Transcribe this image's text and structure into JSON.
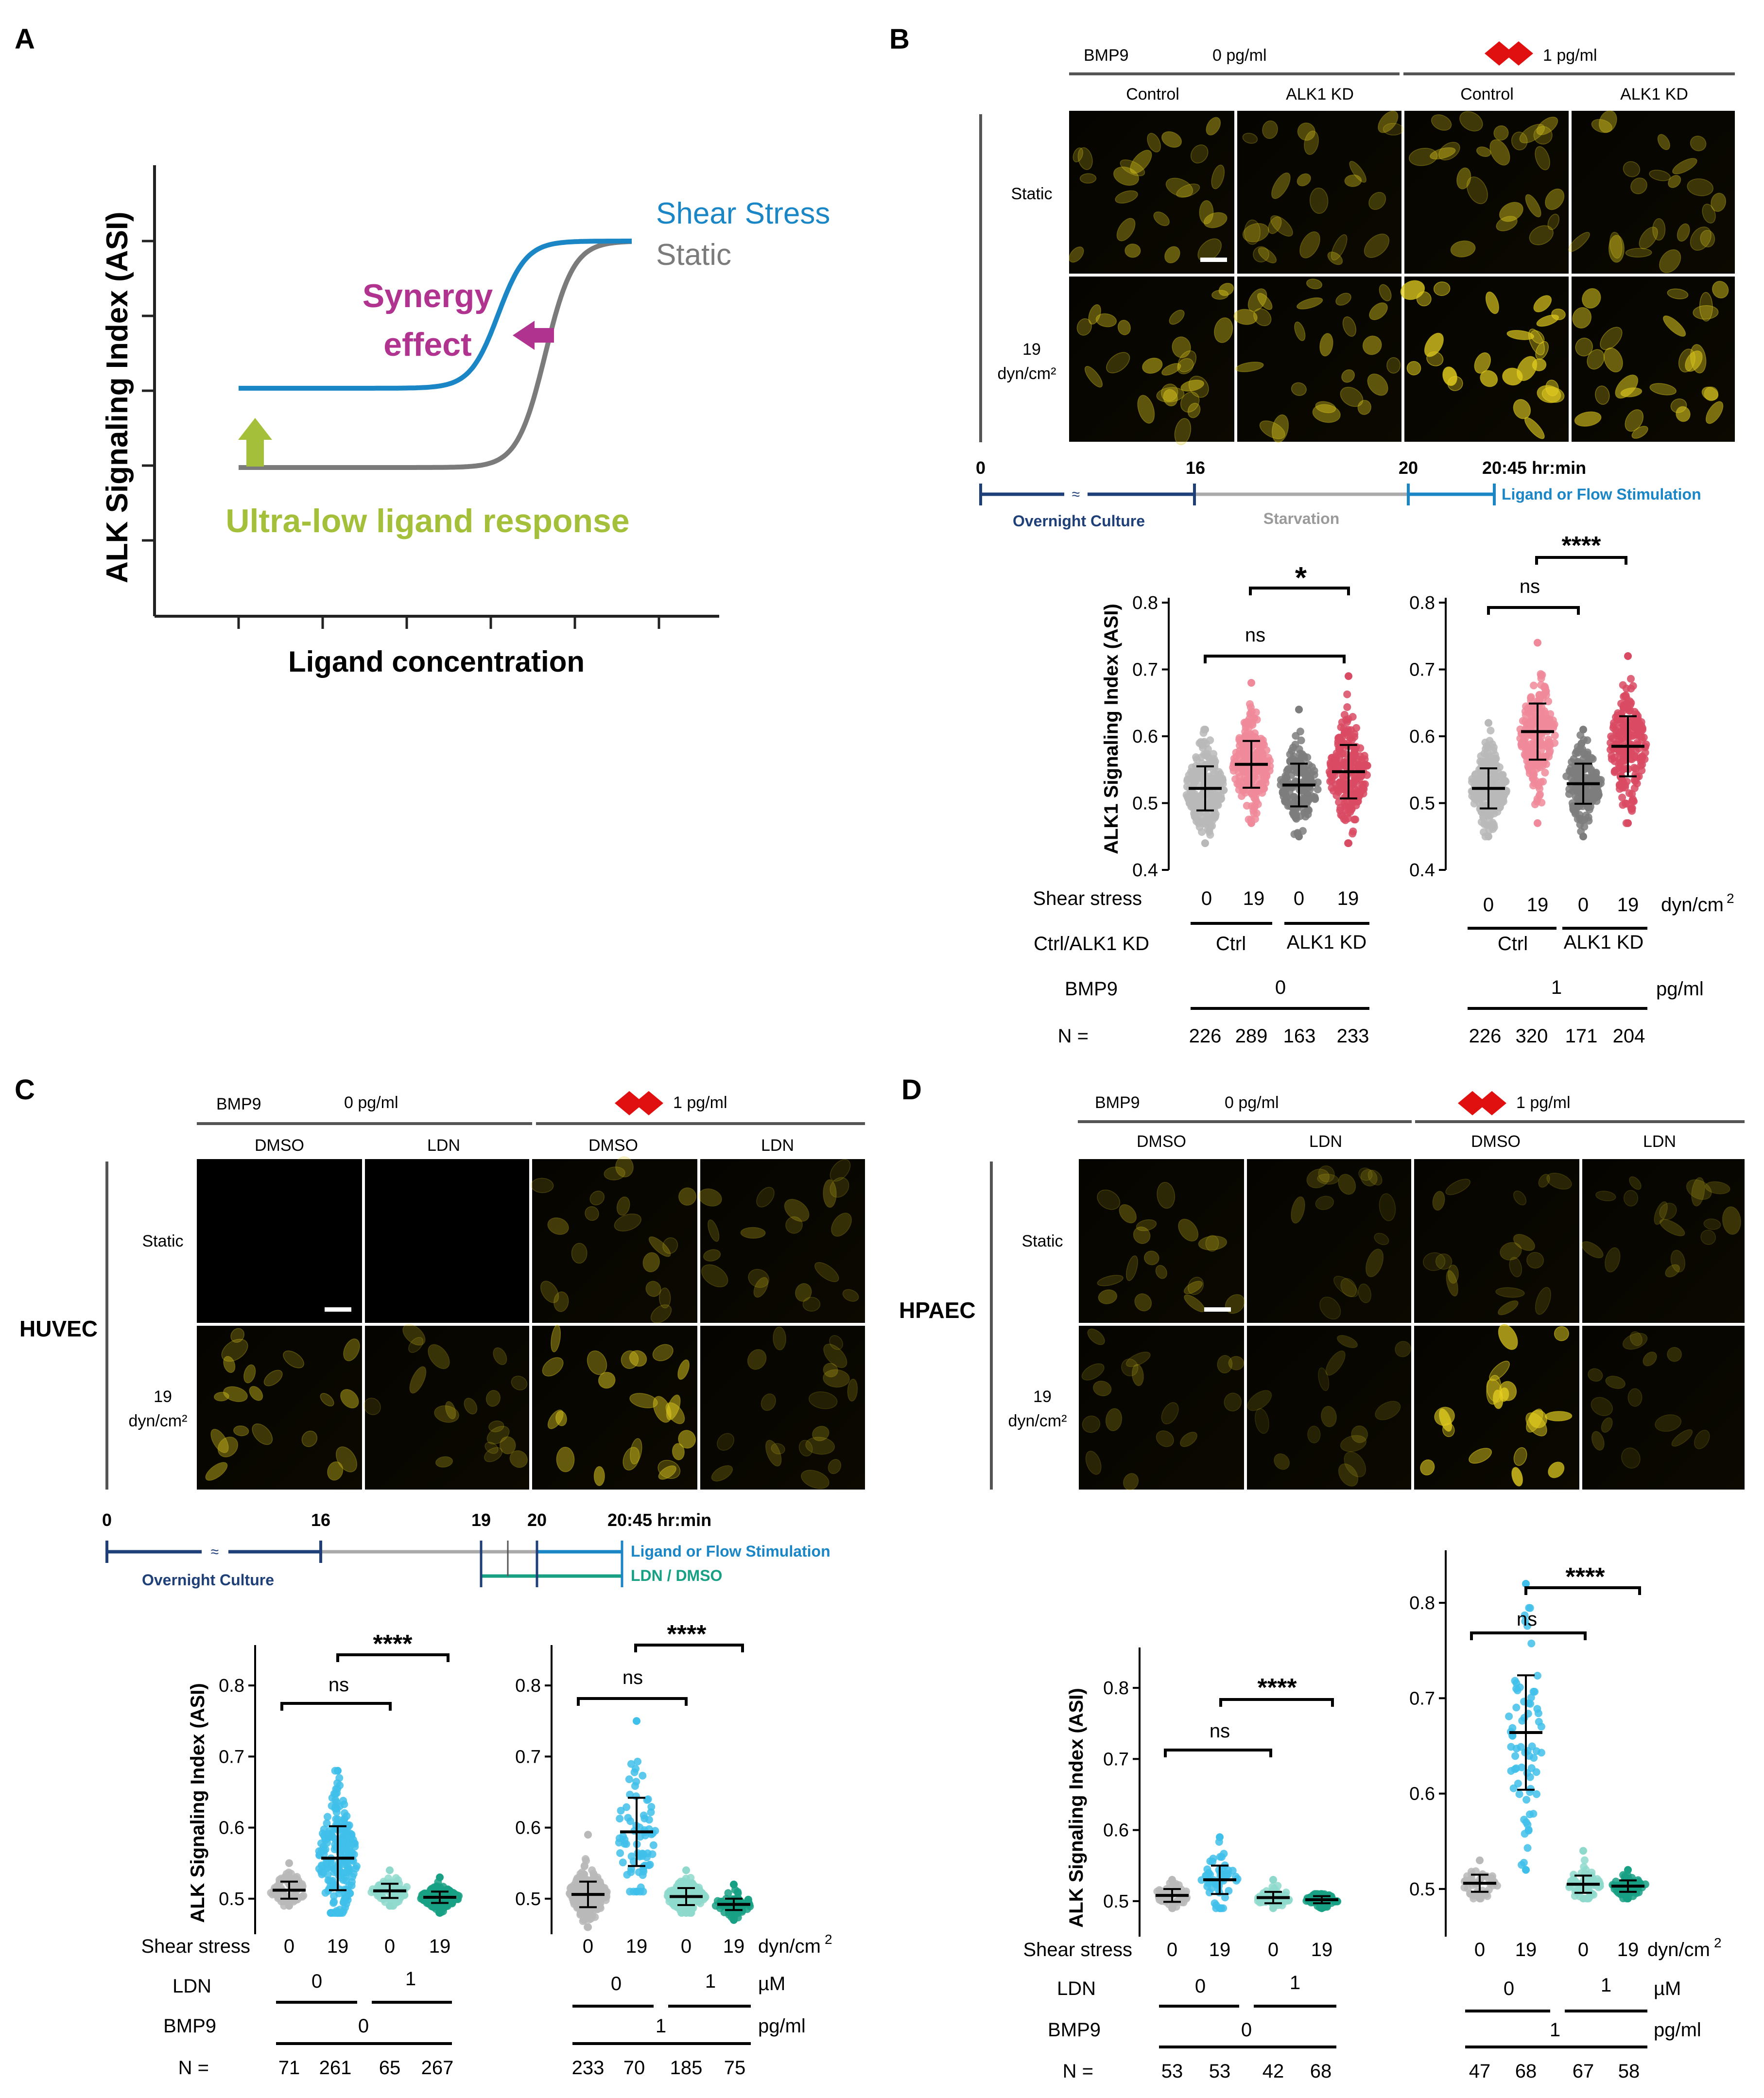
{
  "panels": {
    "A": {
      "letter": "A",
      "ylabel": "ALK Signaling Index (ASI)",
      "xlabel": "Ligand concentration",
      "legend_shear": "Shear Stress",
      "legend_static": "Static",
      "synergy_line1": "Synergy",
      "synergy_line2": "effect",
      "ultra_low": "Ultra-low ligand response",
      "colors": {
        "shear": "#1a86c6",
        "static": "#7b7b7b",
        "synergy": "#b0338f",
        "ultra": "#a4c03a"
      }
    },
    "B": {
      "letter": "B",
      "bmp9_label": "BMP9",
      "dose0": "0 pg/ml",
      "dose1": "1 pg/ml",
      "cols": [
        "Control",
        "ALK1 KD",
        "Control",
        "ALK1 KD"
      ],
      "rows": [
        "Static",
        "19",
        "dyn/cm²"
      ],
      "timeline": {
        "ticks": [
          "0",
          "16",
          "20",
          "20:45 hr:min"
        ],
        "overnight": "Overnight Culture",
        "starvation": "Starvation",
        "stim": "Ligand or Flow Stimulation",
        "break": "≈"
      },
      "ylabel": "ALK1 Signaling Index (ASI)",
      "plot1": {
        "sig1": "ns",
        "sig2": "*"
      },
      "plot2": {
        "sig1": "ns",
        "sig2": "****"
      },
      "table": {
        "shear_label": "Shear stress",
        "ctrl_label": "Ctrl/ALK1 KD",
        "bmp9_label": "BMP9",
        "n_label": "N =",
        "shear_vals": [
          "0",
          "19",
          "0",
          "19"
        ],
        "shear_unit": "dyn/cm",
        "sup2": "2",
        "ctrl": "Ctrl",
        "kd": "ALK1 KD",
        "bmp9_left": "0",
        "bmp9_right": "1",
        "bmp9_unit": "pg/ml",
        "n_left": [
          "226",
          "289",
          "163",
          "233"
        ],
        "n_right": [
          "226",
          "320",
          "171",
          "204"
        ]
      }
    },
    "C": {
      "letter": "C",
      "cell": "HUVEC",
      "bmp9_label": "BMP9",
      "dose0": "0 pg/ml",
      "dose1": "1 pg/ml",
      "cols": [
        "DMSO",
        "LDN",
        "DMSO",
        "LDN"
      ],
      "rows": [
        "Static",
        "19",
        "dyn/cm²"
      ],
      "timeline": {
        "ticks": [
          "0",
          "16",
          "19",
          "20",
          "20:45 hr:min"
        ],
        "overnight": "Overnight Culture",
        "stim": "Ligand or Flow Stimulation",
        "ldn": "LDN / DMSO",
        "break": "≈"
      },
      "ylabel": "ALK Signaling Index (ASI)",
      "plot1": {
        "sig1": "ns",
        "sig2": "****"
      },
      "plot2": {
        "sig1": "ns",
        "sig2": "****"
      },
      "table": {
        "shear_label": "Shear stress",
        "ldn_label": "LDN",
        "bmp9_label": "BMP9",
        "n_label": "N =",
        "shear_vals": [
          "0",
          "19",
          "0",
          "19"
        ],
        "shear_unit": "dyn/cm",
        "sup2": "2",
        "ldn0": "0",
        "ldn1": "1",
        "ldn_unit": "µM",
        "bmp9_left": "0",
        "bmp9_right": "1",
        "bmp9_unit": "pg/ml",
        "n_left": [
          "71",
          "261",
          "65",
          "267"
        ],
        "n_right": [
          "233",
          "70",
          "185",
          "75"
        ]
      }
    },
    "D": {
      "letter": "D",
      "cell": "HPAEC",
      "bmp9_label": "BMP9",
      "dose0": "0 pg/ml",
      "dose1": "1 pg/ml",
      "cols": [
        "DMSO",
        "LDN",
        "DMSO",
        "LDN"
      ],
      "rows": [
        "Static",
        "19",
        "dyn/cm²"
      ],
      "ylabel": "ALK Signaling Index (ASI)",
      "plot1": {
        "sig1": "ns",
        "sig2": "****"
      },
      "plot2": {
        "sig1": "ns",
        "sig2": "****"
      },
      "table": {
        "shear_label": "Shear stress",
        "ldn_label": "LDN",
        "bmp9_label": "BMP9",
        "n_label": "N =",
        "shear_vals": [
          "0",
          "19",
          "0",
          "19"
        ],
        "shear_unit": "dyn/cm",
        "sup2": "2",
        "ldn0": "0",
        "ldn1": "1",
        "ldn_unit": "µM",
        "bmp9_left": "0",
        "bmp9_right": "1",
        "bmp9_unit": "pg/ml",
        "n_left": [
          "53",
          "53",
          "42",
          "68"
        ],
        "n_right": [
          "47",
          "68",
          "67",
          "58"
        ]
      }
    }
  },
  "chart_data": [
    {
      "type": "line",
      "id": "A",
      "title": "",
      "xlabel": "Ligand concentration",
      "ylabel": "ALK Signaling Index (ASI)",
      "series": [
        {
          "name": "Shear Stress",
          "low": 0.35,
          "high": 1.0,
          "midpoint": 0.66,
          "color": "#1a86c6"
        },
        {
          "name": "Static",
          "low": 0.0,
          "high": 1.0,
          "midpoint": 0.78,
          "color": "#7b7b7b"
        }
      ]
    },
    {
      "type": "scatter",
      "id": "B1",
      "ylabel": "ALK1 Signaling Index (ASI)",
      "ylim": [
        0.4,
        0.8
      ],
      "yticks": [
        "0.4",
        "0.5",
        "0.6",
        "0.7",
        "0.8"
      ],
      "categories": [
        "0",
        "19",
        "0",
        "19"
      ],
      "means": [
        0.522,
        0.558,
        0.527,
        0.547
      ],
      "sd": [
        0.033,
        0.035,
        0.032,
        0.04
      ],
      "min": [
        0.44,
        0.47,
        0.45,
        0.44
      ],
      "max": [
        0.61,
        0.68,
        0.64,
        0.69
      ],
      "colors": [
        "#b9b9b9",
        "#f08a9a",
        "#7d7d7d",
        "#d94a63"
      ]
    },
    {
      "type": "scatter",
      "id": "B2",
      "ylabel": "ALK1 Signaling Index (ASI)",
      "ylim": [
        0.4,
        0.8
      ],
      "yticks": [
        "0.4",
        "0.5",
        "0.6",
        "0.7",
        "0.8"
      ],
      "categories": [
        "0",
        "19",
        "0",
        "19"
      ],
      "means": [
        0.522,
        0.607,
        0.529,
        0.585
      ],
      "sd": [
        0.03,
        0.042,
        0.03,
        0.045
      ],
      "min": [
        0.45,
        0.47,
        0.45,
        0.47
      ],
      "max": [
        0.62,
        0.74,
        0.61,
        0.72
      ],
      "colors": [
        "#b9b9b9",
        "#f08a9a",
        "#7d7d7d",
        "#d94a63"
      ]
    },
    {
      "type": "scatter",
      "id": "C1",
      "ylabel": "ALK Signaling Index (ASI)",
      "ylim": [
        0.45,
        0.85
      ],
      "yticks": [
        "0.5",
        "0.6",
        "0.7",
        "0.8"
      ],
      "categories": [
        "0",
        "19",
        "0",
        "19"
      ],
      "means": [
        0.512,
        0.557,
        0.511,
        0.502
      ],
      "sd": [
        0.012,
        0.045,
        0.01,
        0.008
      ],
      "min": [
        0.49,
        0.48,
        0.49,
        0.48
      ],
      "max": [
        0.55,
        0.68,
        0.54,
        0.53
      ],
      "colors": [
        "#b9b9b9",
        "#3fc0ea",
        "#8ed9cc",
        "#17a084"
      ]
    },
    {
      "type": "scatter",
      "id": "C2",
      "ylabel": "ALK Signaling Index (ASI)",
      "ylim": [
        0.45,
        0.85
      ],
      "yticks": [
        "0.5",
        "0.6",
        "0.7",
        "0.8"
      ],
      "categories": [
        "0",
        "19",
        "0",
        "19"
      ],
      "means": [
        0.506,
        0.594,
        0.503,
        0.492
      ],
      "sd": [
        0.018,
        0.048,
        0.012,
        0.008
      ],
      "min": [
        0.46,
        0.51,
        0.48,
        0.47
      ],
      "max": [
        0.59,
        0.75,
        0.54,
        0.52
      ],
      "colors": [
        "#b9b9b9",
        "#3fc0ea",
        "#8ed9cc",
        "#17a084"
      ]
    },
    {
      "type": "scatter",
      "id": "D1",
      "ylabel": "ALK Signaling Index (ASI)",
      "ylim": [
        0.45,
        0.85
      ],
      "yticks": [
        "0.5",
        "0.6",
        "0.7",
        "0.8"
      ],
      "categories": [
        "0",
        "19",
        "0",
        "19"
      ],
      "means": [
        0.508,
        0.53,
        0.505,
        0.502
      ],
      "sd": [
        0.009,
        0.02,
        0.008,
        0.005
      ],
      "min": [
        0.49,
        0.49,
        0.49,
        0.49
      ],
      "max": [
        0.53,
        0.59,
        0.53,
        0.51
      ],
      "colors": [
        "#b9b9b9",
        "#3fc0ea",
        "#8ed9cc",
        "#17a084"
      ]
    },
    {
      "type": "scatter",
      "id": "D2",
      "ylabel": "ALK Signaling Index (ASI)",
      "ylim": [
        0.45,
        0.85
      ],
      "yticks": [
        "0.5",
        "0.6",
        "0.7",
        "0.8"
      ],
      "categories": [
        "0",
        "19",
        "0",
        "19"
      ],
      "means": [
        0.506,
        0.664,
        0.505,
        0.503
      ],
      "sd": [
        0.009,
        0.06,
        0.009,
        0.006
      ],
      "min": [
        0.49,
        0.52,
        0.49,
        0.49
      ],
      "max": [
        0.53,
        0.82,
        0.54,
        0.52
      ],
      "colors": [
        "#b9b9b9",
        "#3fc0ea",
        "#8ed9cc",
        "#17a084"
      ]
    }
  ]
}
